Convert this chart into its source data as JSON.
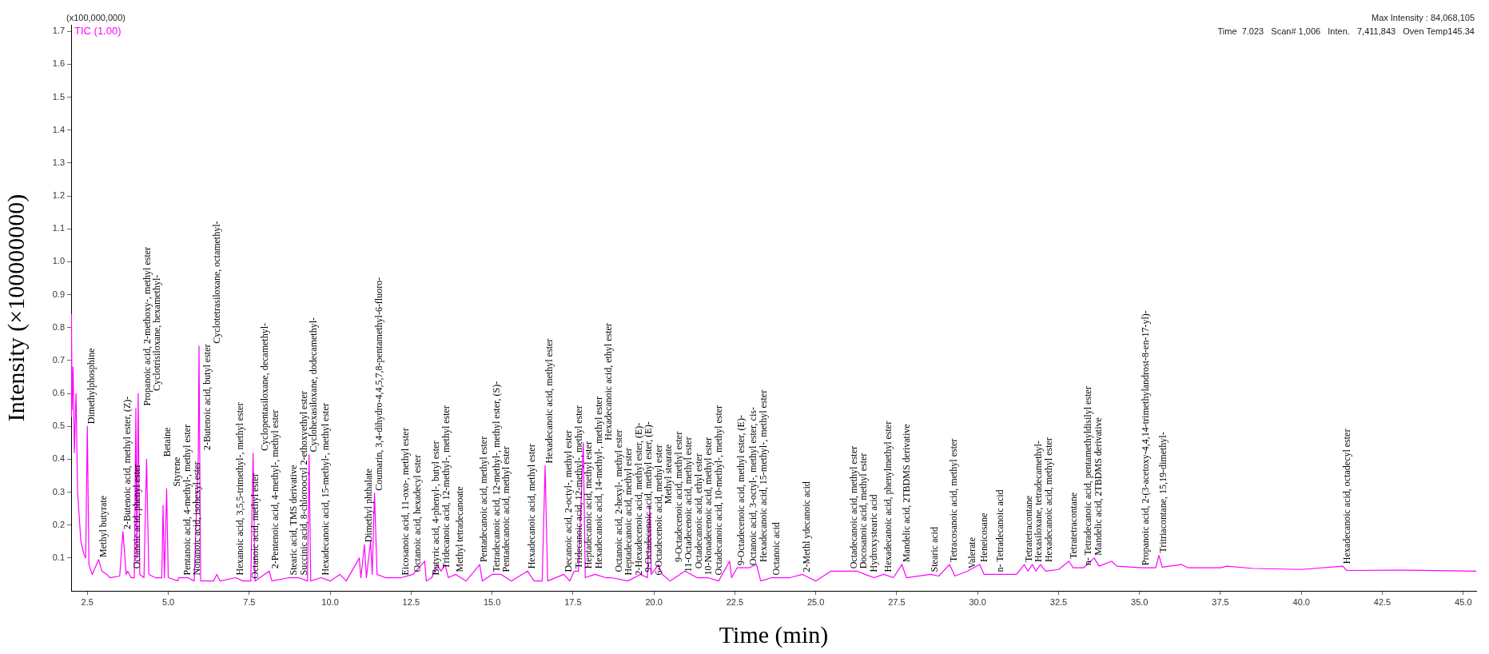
{
  "chart_data": {
    "type": "line",
    "xlabel": "Time (min)",
    "ylabel": "Intensity (×100000000)",
    "xlim": [
      2.0,
      45.4
    ],
    "ylim": [
      0,
      1.72
    ],
    "xticks": [
      {
        "value": 2.5,
        "label": "2.5"
      },
      {
        "value": 5,
        "label": "5.0"
      },
      {
        "value": 7.5,
        "label": "7.5"
      },
      {
        "value": 10,
        "label": "10.0"
      },
      {
        "value": 12.5,
        "label": "12.5"
      },
      {
        "value": 15,
        "label": "15.0"
      },
      {
        "value": 17.5,
        "label": "17.5"
      },
      {
        "value": 20,
        "label": "20.0"
      },
      {
        "value": 22.5,
        "label": "22.5"
      },
      {
        "value": 25,
        "label": "25.0"
      },
      {
        "value": 27.5,
        "label": "27.5"
      },
      {
        "value": 30,
        "label": "30.0"
      },
      {
        "value": 32.5,
        "label": "32.5"
      },
      {
        "value": 35,
        "label": "35.0"
      },
      {
        "value": 37.5,
        "label": "37.5"
      },
      {
        "value": 40,
        "label": "40.0"
      },
      {
        "value": 42.5,
        "label": "42.5"
      },
      {
        "value": 45,
        "label": "45.0"
      }
    ],
    "yticks": [
      {
        "value": 0.1,
        "label": "0.1"
      },
      {
        "value": 0.2,
        "label": "0.2"
      },
      {
        "value": 0.3,
        "label": "0.3"
      },
      {
        "value": 0.4,
        "label": "0.4"
      },
      {
        "value": 0.5,
        "label": "0.5"
      },
      {
        "value": 0.6,
        "label": "0.6"
      },
      {
        "value": 0.7,
        "label": "0.7"
      },
      {
        "value": 0.8,
        "label": "0.8"
      },
      {
        "value": 0.9,
        "label": "0.9"
      },
      {
        "value": 1,
        "label": "1.0"
      },
      {
        "value": 1.1,
        "label": "1.1"
      },
      {
        "value": 1.2,
        "label": "1.2"
      },
      {
        "value": 1.3,
        "label": "1.3"
      },
      {
        "value": 1.4,
        "label": "1.4"
      },
      {
        "value": 1.5,
        "label": "1.5"
      },
      {
        "value": 1.6,
        "label": "1.6"
      },
      {
        "value": 1.7,
        "label": "1.7"
      }
    ],
    "grid": false,
    "legend": "top left",
    "marker": "none",
    "line_style": "solid",
    "series": [
      {
        "name": "TIC (1.00)",
        "color": "#ff00ff",
        "x": [
          2.0,
          2.01,
          2.03,
          2.06,
          2.1,
          2.15,
          2.2,
          2.3,
          2.4,
          2.45,
          2.5,
          2.55,
          2.65,
          2.85,
          2.95,
          3.1,
          3.2,
          3.5,
          3.6,
          3.7,
          3.75,
          3.85,
          3.95,
          4.0,
          4.03,
          4.07,
          4.12,
          4.25,
          4.33,
          4.4,
          4.6,
          4.8,
          4.84,
          4.88,
          4.95,
          5.0,
          5.3,
          5.32,
          5.6,
          5.8,
          5.93,
          5.95,
          6.0,
          6.4,
          6.5,
          6.6,
          7.09,
          7.3,
          7.55,
          7.62,
          7.68,
          8.12,
          8.2,
          8.74,
          9.02,
          9.3,
          9.35,
          9.4,
          9.72,
          10.0,
          10.3,
          10.5,
          10.9,
          10.95,
          11.06,
          11.12,
          11.25,
          11.3,
          11.37,
          11.45,
          11.7,
          12.19,
          12.56,
          12.92,
          12.97,
          13.14,
          13.3,
          13.43,
          13.55,
          13.65,
          13.88,
          14.2,
          14.62,
          14.7,
          15.0,
          15.28,
          15.6,
          16.1,
          16.3,
          16.55,
          16.64,
          16.72,
          17.22,
          17.4,
          17.54,
          17.67,
          17.82,
          17.88,
          18.18,
          18.51,
          18.68,
          19.2,
          19.58,
          19.8,
          19.87,
          19.92,
          20.14,
          20.26,
          20.5,
          20.96,
          21.33,
          21.66,
          22.0,
          22.34,
          22.4,
          22.57,
          22.94,
          23.17,
          23.3,
          23.64,
          24.2,
          24.59,
          25.0,
          25.47,
          25.64,
          26.03,
          26.28,
          26.52,
          26.8,
          27.1,
          27.4,
          27.66,
          27.8,
          28.54,
          28.8,
          29.13,
          29.3,
          29.69,
          30.06,
          30.2,
          30.55,
          31.2,
          31.44,
          31.55,
          31.69,
          31.8,
          31.94,
          32.1,
          32.5,
          32.82,
          32.95,
          33.27,
          33.6,
          33.75,
          34.14,
          34.3,
          35.04,
          35.5,
          35.6,
          35.7,
          36.3,
          36.5,
          37.5,
          37.7,
          38.5,
          40.0,
          41.28,
          41.4,
          43.0,
          45.4
        ],
        "values": [
          0.53,
          0.84,
          0.55,
          0.68,
          0.42,
          0.6,
          0.3,
          0.15,
          0.11,
          0.1,
          0.5,
          0.08,
          0.05,
          0.095,
          0.06,
          0.05,
          0.04,
          0.045,
          0.18,
          0.05,
          0.06,
          0.04,
          0.04,
          0.555,
          0.1,
          0.6,
          0.05,
          0.04,
          0.4,
          0.05,
          0.04,
          0.04,
          0.26,
          0.04,
          0.31,
          0.04,
          0.03,
          0.04,
          0.04,
          0.03,
          0.42,
          0.744,
          0.03,
          0.03,
          0.05,
          0.03,
          0.04,
          0.03,
          0.03,
          0.418,
          0.03,
          0.06,
          0.03,
          0.04,
          0.04,
          0.03,
          0.414,
          0.03,
          0.04,
          0.03,
          0.05,
          0.03,
          0.1,
          0.04,
          0.14,
          0.04,
          0.15,
          0.05,
          0.297,
          0.05,
          0.04,
          0.04,
          0.05,
          0.09,
          0.03,
          0.04,
          0.08,
          0.06,
          0.08,
          0.04,
          0.05,
          0.03,
          0.08,
          0.03,
          0.05,
          0.05,
          0.03,
          0.06,
          0.03,
          0.03,
          0.38,
          0.03,
          0.05,
          0.03,
          0.06,
          0.06,
          0.45,
          0.04,
          0.05,
          0.04,
          0.04,
          0.03,
          0.05,
          0.04,
          0.257,
          0.05,
          0.08,
          0.05,
          0.03,
          0.06,
          0.04,
          0.04,
          0.03,
          0.09,
          0.04,
          0.07,
          0.07,
          0.08,
          0.03,
          0.04,
          0.04,
          0.05,
          0.03,
          0.06,
          0.06,
          0.06,
          0.06,
          0.05,
          0.04,
          0.05,
          0.04,
          0.08,
          0.04,
          0.05,
          0.045,
          0.08,
          0.045,
          0.06,
          0.08,
          0.05,
          0.05,
          0.05,
          0.08,
          0.06,
          0.08,
          0.06,
          0.08,
          0.06,
          0.065,
          0.09,
          0.07,
          0.07,
          0.1,
          0.075,
          0.09,
          0.075,
          0.07,
          0.07,
          0.108,
          0.072,
          0.08,
          0.07,
          0.07,
          0.075,
          0.068,
          0.065,
          0.075,
          0.062,
          0.063,
          0.06
        ]
      }
    ],
    "annotations": [
      "(x100,000,000)",
      "Max Intensity : 84,068,105",
      "Time  7.023   Scan# 1,006   Inten.   7,411,843   Oven Temp145.34",
      {
        "text": "Dimethylphosphine",
        "x": 2.5,
        "y": 0.5
      },
      {
        "text": "Methyl butyrate",
        "x": 2.85,
        "y": 0.095
      },
      {
        "text": "2-Butenoic acid, methyl ester, (Z)-",
        "x": 3.6,
        "y": 0.18
      },
      {
        "text": "Octanoic acid, phenyl ester",
        "x": 3.75,
        "y": 0.06
      },
      {
        "text": "Propanoic acid, 2-methoxy-, methyl ester",
        "x": 4.0,
        "y": 0.555
      },
      {
        "text": "Cyclotrisiloxane, hexamethyl-",
        "x": 4.07,
        "y": 0.6
      },
      {
        "text": "Betaine",
        "x": 4.33,
        "y": 0.4
      },
      {
        "text": "Styrene",
        "x": 4.95,
        "y": 0.31
      },
      {
        "text": "Pentanoic acid, 4-methyl-, methyl ester",
        "x": 5.32,
        "y": 0.04
      },
      {
        "text": "Nonanoic acid, isohexyl ester",
        "x": 5.6,
        "y": 0.04
      },
      {
        "text": "2-Butenoic acid, butyl ester",
        "x": 5.93,
        "y": 0.42
      },
      {
        "text": "Cyclotetrasiloxane, octamethyl-",
        "x": 5.95,
        "y": 0.744
      },
      {
        "text": "Hexanoic acid, 3,5,5-trimethyl-, methyl ester",
        "x": 7.09,
        "y": 0.04
      },
      {
        "text": "Octanoic acid, methyl ester",
        "x": 7.55,
        "y": 0.03
      },
      {
        "text": "Cyclopentasiloxane, decamethyl-",
        "x": 7.62,
        "y": 0.418
      },
      {
        "text": "2-Pentenoic acid, 4-methyl-, methyl ester",
        "x": 8.12,
        "y": 0.06
      },
      {
        "text": "Stearic acid, TMS derivative",
        "x": 8.74,
        "y": 0.04
      },
      {
        "text": "Succinic acid, 8-chlorooctyl 2-ethoxyethyl ester",
        "x": 9.02,
        "y": 0.04
      },
      {
        "text": "Cyclohexasiloxane, dodecamethyl-",
        "x": 9.35,
        "y": 0.414
      },
      {
        "text": "Hexadecanoic acid, 15-methyl-, methyl ester",
        "x": 9.72,
        "y": 0.04
      },
      {
        "text": "Dimethyl phthalate",
        "x": 11.06,
        "y": 0.14
      },
      {
        "text": "Coumarin, 3,4-dihydro-4,4,5,7,8-pentamethyl-6-fluoro-",
        "x": 11.37,
        "y": 0.297
      },
      {
        "text": "Eicosanoic acid, 11-oxo-, methyl ester",
        "x": 12.19,
        "y": 0.04
      },
      {
        "text": "Octanoic acid, hexadecyl ester",
        "x": 12.56,
        "y": 0.05
      },
      {
        "text": "Butyric acid, 4-phenyl-, butyl ester",
        "x": 13.14,
        "y": 0.04
      },
      {
        "text": "Tridecanoic acid, 12-methyl-, methyl ester",
        "x": 13.43,
        "y": 0.06
      },
      {
        "text": "Methyl tetradecanoate",
        "x": 13.88,
        "y": 0.05
      },
      {
        "text": "Pentadecanoic acid, methyl ester",
        "x": 14.62,
        "y": 0.08
      },
      {
        "text": "Tetradecanoic acid, 12-methyl-, methyl ester, (S)-",
        "x": 15.0,
        "y": 0.05
      },
      {
        "text": "Pentadecanoic acid, methyl ester",
        "x": 15.28,
        "y": 0.05
      },
      {
        "text": "Hexadecanoic acid, methyl ester",
        "x": 16.1,
        "y": 0.06
      },
      {
        "text": "Hexadecanoic acid, methyl ester",
        "x": 16.64,
        "y": 0.38
      },
      {
        "text": "Decanoic acid, 2-octyl-, methyl ester",
        "x": 17.22,
        "y": 0.05
      },
      {
        "text": "Tridecanoic acid, 12-methyl-, methyl ester",
        "x": 17.54,
        "y": 0.06
      },
      {
        "text": "Heptadecanoic acid, methyl ester",
        "x": 17.67,
        "y": 0.06
      },
      {
        "text": "Hexadecanoic acid, 14-methyl-, methyl ester",
        "x": 17.75,
        "y": 0.06
      },
      {
        "text": "Hexadecanoic acid, ethyl ester",
        "x": 17.82,
        "y": 0.45
      },
      {
        "text": "Octanoic acid, 2-hexyl-, methyl ester",
        "x": 18.18,
        "y": 0.05
      },
      {
        "text": "Heptadecanoic acid, methyl ester",
        "x": 18.51,
        "y": 0.04
      },
      {
        "text": "2-Hexadecenoic acid, methyl ester, (E)-",
        "x": 18.68,
        "y": 0.04
      },
      {
        "text": "9-Octadecenoic acid, methyl ester, (E)-",
        "x": 19.58,
        "y": 0.05
      },
      {
        "text": "6-Octadecenoic acid, methyl ester",
        "x": 19.8,
        "y": 0.04
      },
      {
        "text": "Methyl stearate",
        "x": 19.87,
        "y": 0.257
      },
      {
        "text": "9-Octadecenoic acid, methyl ester",
        "x": 20.14,
        "y": 0.08
      },
      {
        "text": "11-Octadecenoic acid, methyl ester",
        "x": 20.26,
        "y": 0.05
      },
      {
        "text": "Octadecanoic acid, ethyl ester",
        "x": 20.96,
        "y": 0.06
      },
      {
        "text": "10-Nonadecenoic acid, methyl ester",
        "x": 21.33,
        "y": 0.04
      },
      {
        "text": "Octadecanoic acid, 10-methyl-, methyl ester",
        "x": 21.66,
        "y": 0.04
      },
      {
        "text": "9-Octadecenoic acid, methyl ester, (E)-",
        "x": 22.57,
        "y": 0.07
      },
      {
        "text": "Octanoic acid, 3-octyl-, methyl ester, cis-",
        "x": 22.94,
        "y": 0.07
      },
      {
        "text": "Hexadecanoic acid, 15-methyl-, methyl ester",
        "x": 23.17,
        "y": 0.08
      },
      {
        "text": "Octanoic acid",
        "x": 23.64,
        "y": 0.04
      },
      {
        "text": "2-Methl ydecanoic acid",
        "x": 24.59,
        "y": 0.05
      },
      {
        "text": "Octadecanoic acid, methyl ester",
        "x": 26.03,
        "y": 0.06
      },
      {
        "text": "Docosanoic acid, methyl ester",
        "x": 26.28,
        "y": 0.06
      },
      {
        "text": "Hydroxystearic acid",
        "x": 26.52,
        "y": 0.05
      },
      {
        "text": "Hexadecanoic acid, phenylmethyl ester",
        "x": 27.1,
        "y": 0.05
      },
      {
        "text": "Mandelic acid, 2TBDMS derivative",
        "x": 27.66,
        "y": 0.08
      },
      {
        "text": "Stearic acid",
        "x": 28.54,
        "y": 0.05
      },
      {
        "text": "Tetracosanoic acid, methyl ester",
        "x": 29.13,
        "y": 0.08
      },
      {
        "text": "Valerate",
        "x": 29.69,
        "y": 0.06
      },
      {
        "text": "Heneicosane",
        "x": 30.06,
        "y": 0.08
      },
      {
        "text": "n- Tetradecanoic acid",
        "x": 30.55,
        "y": 0.05
      },
      {
        "text": "Tetratetracontane",
        "x": 31.44,
        "y": 0.08
      },
      {
        "text": "Hexasiloxane, tetradecamethyl-",
        "x": 31.69,
        "y": 0.08
      },
      {
        "text": "Hexadecanoic acid, methyl ester",
        "x": 31.94,
        "y": 0.08
      },
      {
        "text": "Tetratetracontane",
        "x": 32.82,
        "y": 0.09
      },
      {
        "text": "n- Tetradecanoic acid, pentamethyldisilyl ester",
        "x": 33.27,
        "y": 0.07
      },
      {
        "text": "Mandelic acid, 2TBDMS derivative",
        "x": 33.6,
        "y": 0.1
      },
      {
        "text": "Propanoic acid, 2-(3-acetoxy-4,4,14-trimethylandrost-8-en-17-yl)-",
        "x": 35.04,
        "y": 0.07
      },
      {
        "text": "Tritriacontane, 15,19-dimethyl-",
        "x": 35.6,
        "y": 0.108
      },
      {
        "text": "Hexadecanoic acid, octadecyl ester",
        "x": 41.28,
        "y": 0.075
      }
    ]
  }
}
